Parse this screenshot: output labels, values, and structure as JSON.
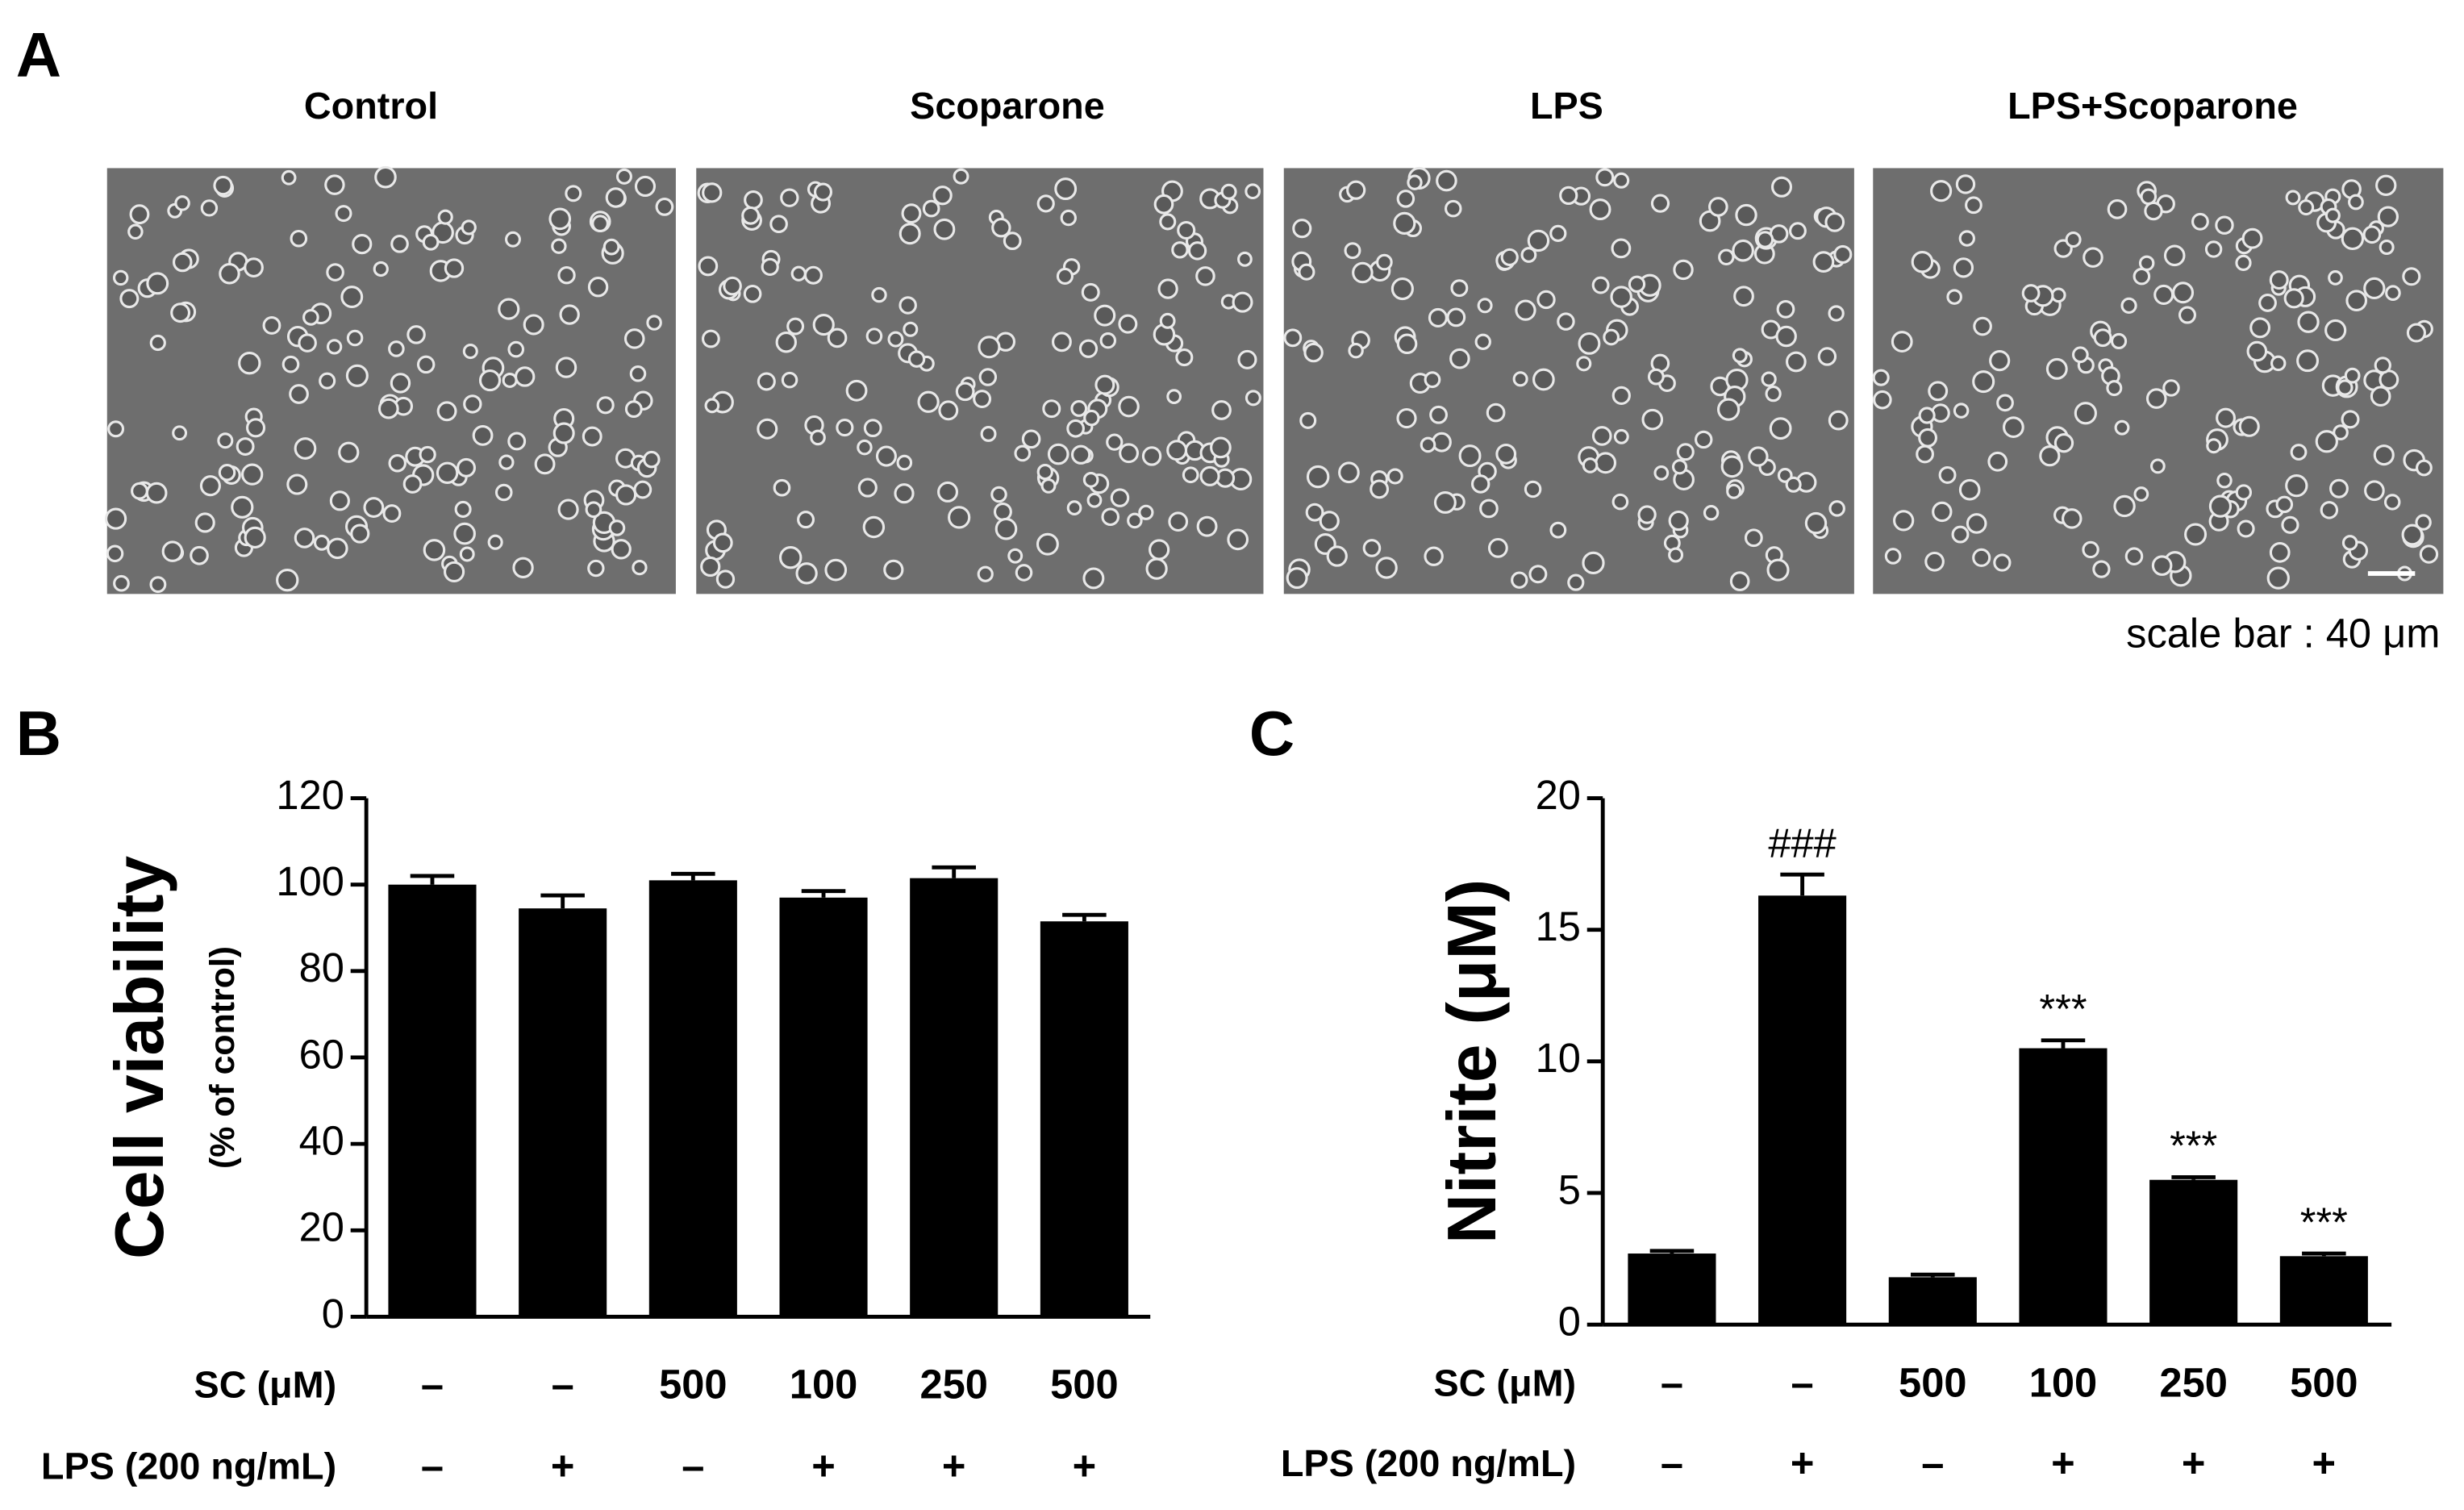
{
  "figure_a": {
    "panel_label": "A",
    "conditions": [
      "Control",
      "Scoparone",
      "LPS",
      "LPS+Scoparone"
    ],
    "scale_bar": "scale bar : 40 μm"
  },
  "chart_data": [
    {
      "type": "bar",
      "panel_label": "B",
      "ylabel": "Cell viability",
      "ylabel_sub": "(% of control)",
      "values": [
        100,
        94.5,
        101,
        97,
        101.5,
        91.5
      ],
      "errors": [
        2,
        3,
        1.5,
        1.5,
        2.5,
        1.5
      ],
      "color": "#000000",
      "ylim": [
        0,
        120
      ],
      "yticks": [
        0,
        20,
        40,
        60,
        80,
        100,
        120
      ],
      "treatments": [
        {
          "label": "SC (μM)",
          "values": [
            "–",
            "–",
            "500",
            "100",
            "250",
            "500"
          ]
        },
        {
          "label": "LPS (200 ng/mL)",
          "values": [
            "–",
            "+",
            "–",
            "+",
            "+",
            "+"
          ]
        }
      ]
    },
    {
      "type": "bar",
      "panel_label": "C",
      "ylabel": "Nitrite (μM)",
      "values": [
        2.7,
        16.3,
        1.8,
        10.5,
        5.5,
        2.6
      ],
      "errors": [
        0.1,
        0.8,
        0.1,
        0.3,
        0.1,
        0.1
      ],
      "color": "#000000",
      "ylim": [
        0,
        20
      ],
      "yticks": [
        0,
        5,
        10,
        15,
        20
      ],
      "annotations": [
        null,
        "###",
        null,
        "***",
        "***",
        "***"
      ],
      "treatments": [
        {
          "label": "SC (μM)",
          "values": [
            "–",
            "–",
            "500",
            "100",
            "250",
            "500"
          ]
        },
        {
          "label": "LPS (200 ng/mL)",
          "values": [
            "–",
            "+",
            "–",
            "+",
            "+",
            "+"
          ]
        }
      ]
    }
  ]
}
